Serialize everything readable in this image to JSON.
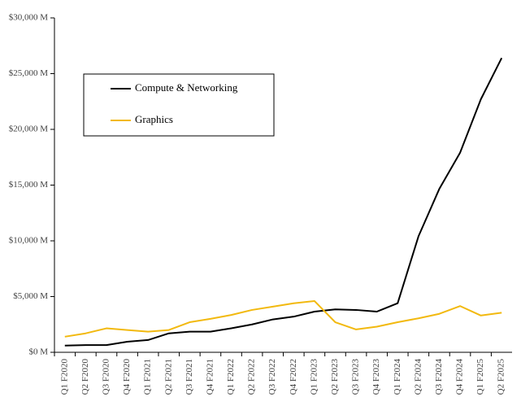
{
  "chart_data": {
    "type": "line",
    "categories": [
      "Q1 F2020",
      "Q2 F2020",
      "Q3 F2020",
      "Q4 F2020",
      "Q1 F2021",
      "Q2 F2021",
      "Q3 F2021",
      "Q4 F2021",
      "Q1 F2022",
      "Q2 F2022",
      "Q3 F2022",
      "Q4 F2022",
      "Q1 F2023",
      "Q2 F2023",
      "Q3 F2023",
      "Q4 F2023",
      "Q1 F2024",
      "Q2 F2024",
      "Q3 F2024",
      "Q4 F2024",
      "Q1 F2025",
      "Q2 F2025"
    ],
    "series": [
      {
        "name": "Compute & Networking",
        "color": "#000000",
        "values": [
          600,
          650,
          650,
          950,
          1100,
          1700,
          1850,
          1850,
          2150,
          2500,
          2950,
          3200,
          3650,
          3850,
          3800,
          3650,
          4400,
          10400,
          14650,
          17900,
          22700,
          26400
        ]
      },
      {
        "name": "Graphics",
        "color": "#f2b90f",
        "values": [
          1400,
          1700,
          2150,
          2000,
          1850,
          2000,
          2700,
          3000,
          3350,
          3800,
          4100,
          4400,
          4600,
          2700,
          2050,
          2300,
          2700,
          3050,
          3450,
          4150,
          3300,
          3550
        ]
      }
    ],
    "ylim": [
      0,
      30000
    ],
    "yticks": [
      {
        "value": 0,
        "label": "$0 M"
      },
      {
        "value": 5000,
        "label": "$5,000 M"
      },
      {
        "value": 10000,
        "label": "$10,000 M"
      },
      {
        "value": 15000,
        "label": "$15,000 M"
      },
      {
        "value": 20000,
        "label": "$20,000 M"
      },
      {
        "value": 25000,
        "label": "$25,000 M"
      },
      {
        "value": 30000,
        "label": "$30,000 M"
      }
    ],
    "grid": false,
    "legend": "upper left"
  }
}
